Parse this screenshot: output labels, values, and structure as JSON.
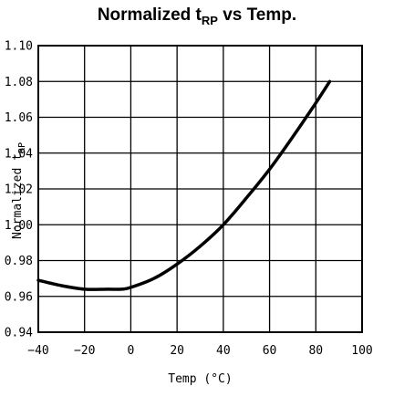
{
  "chart_data": {
    "type": "line",
    "title": {
      "main": "Normalized t",
      "sub": "RP",
      "suffix": " vs Temp."
    },
    "xlabel": "Temp (°C)",
    "ylabel": {
      "main": "Normalized t",
      "sub": "RP"
    },
    "xlim": [
      -40,
      100
    ],
    "ylim": [
      0.94,
      1.1
    ],
    "grid": true,
    "x_ticks": [
      "−40",
      "−20",
      "0",
      "20",
      "40",
      "60",
      "80",
      "100"
    ],
    "y_ticks": [
      "0.94",
      "0.96",
      "0.98",
      "1.00",
      "1.02",
      "1.04",
      "1.06",
      "1.08",
      "1.10"
    ],
    "series": [
      {
        "x": [
          -40,
          -30,
          -20,
          -10,
          -4,
          0,
          10,
          20,
          30,
          40,
          50,
          60,
          70,
          80,
          86
        ],
        "y": [
          0.969,
          0.966,
          0.964,
          0.964,
          0.964,
          0.965,
          0.97,
          0.978,
          0.988,
          1.0,
          1.015,
          1.031,
          1.049,
          1.068,
          1.08
        ]
      }
    ]
  }
}
